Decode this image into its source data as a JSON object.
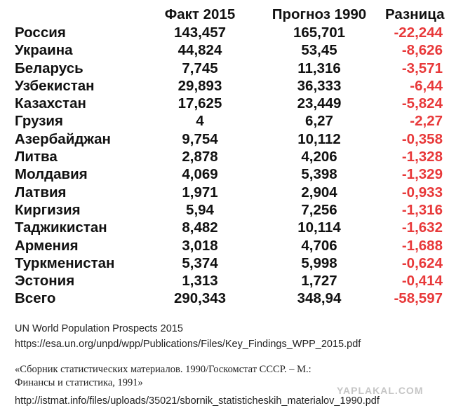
{
  "table": {
    "headers": {
      "fact": "Факт 2015",
      "forecast": "Прогноз 1990",
      "diff": "Разница"
    },
    "rows": [
      {
        "country": "Россия",
        "fact": "143,457",
        "forecast": "165,701",
        "diff": "-22,244"
      },
      {
        "country": "Украина",
        "fact": "44,824",
        "forecast": "53,45",
        "diff": "-8,626"
      },
      {
        "country": "Беларусь",
        "fact": "7,745",
        "forecast": "11,316",
        "diff": "-3,571"
      },
      {
        "country": "Узбекистан",
        "fact": "29,893",
        "forecast": "36,333",
        "diff": "-6,44"
      },
      {
        "country": "Казахстан",
        "fact": "17,625",
        "forecast": "23,449",
        "diff": "-5,824"
      },
      {
        "country": "Грузия",
        "fact": "4",
        "forecast": "6,27",
        "diff": "-2,27"
      },
      {
        "country": "Азербайджан",
        "fact": "9,754",
        "forecast": "10,112",
        "diff": "-0,358"
      },
      {
        "country": "Литва",
        "fact": "2,878",
        "forecast": "4,206",
        "diff": "-1,328"
      },
      {
        "country": "Молдавия",
        "fact": "4,069",
        "forecast": "5,398",
        "diff": "-1,329"
      },
      {
        "country": "Латвия",
        "fact": "1,971",
        "forecast": "2,904",
        "diff": "-0,933"
      },
      {
        "country": "Киргизия",
        "fact": "5,94",
        "forecast": "7,256",
        "diff": "-1,316"
      },
      {
        "country": "Таджикистан",
        "fact": "8,482",
        "forecast": "10,114",
        "diff": "-1,632"
      },
      {
        "country": "Армения",
        "fact": "3,018",
        "forecast": "4,706",
        "diff": "-1,688"
      },
      {
        "country": "Туркменистан",
        "fact": "5,374",
        "forecast": "5,998",
        "diff": "-0,624"
      },
      {
        "country": "Эстония",
        "fact": "1,313",
        "forecast": "1,727",
        "diff": "-0,414"
      },
      {
        "country": "Всего",
        "fact": "290,343",
        "forecast": "348,94",
        "diff": "-58,597"
      }
    ]
  },
  "sources": {
    "un_title": "UN World Population Prospects 2015",
    "un_url": "https://esa.un.org/unpd/wpp/Publications/Files/Key_Findings_WPP_2015.pdf",
    "book_line1": "«Сборник статистических материалов. 1990/Госкомстат СССР. – М.:",
    "book_line2": "Финансы и статистика, 1991»",
    "istmat_url": "http://istmat.info/files/uploads/35021/sbornik_statisticheskih_materialov_1990.pdf"
  },
  "watermark": "YAPLAKAL.COM",
  "colors": {
    "diff_text": "#e8393a",
    "main_text": "#111111"
  }
}
